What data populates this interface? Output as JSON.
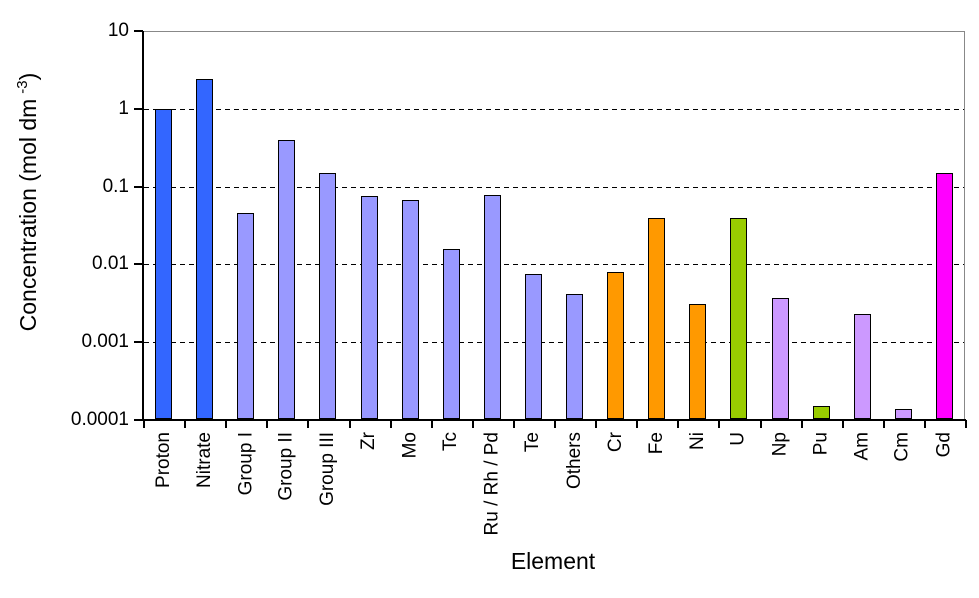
{
  "chart_data": {
    "type": "bar",
    "title": "",
    "xlabel": "Element",
    "ylabel": "Concentration (mol dm^-3)",
    "ylabel_parts": {
      "main": "Concentration (mol dm",
      "sup": "-3",
      "close": ")"
    },
    "y_scale": "log",
    "ylim": [
      0.0001,
      10
    ],
    "grid": "horizontal dashed lines at each decade",
    "legend_position": "none",
    "y_ticks": [
      {
        "label": "10",
        "value": 10
      },
      {
        "label": "1",
        "value": 1
      },
      {
        "label": "0.1",
        "value": 0.1
      },
      {
        "label": "0.01",
        "value": 0.01
      },
      {
        "label": "0.001",
        "value": 0.001
      },
      {
        "label": "0.0001",
        "value": 0.0001
      }
    ],
    "y_gridlines": [
      1,
      0.1,
      0.01,
      0.001
    ],
    "categories": [
      "Proton",
      "Nitrate",
      "Group I",
      "Group II",
      "Group III",
      "Zr",
      "Mo",
      "Tc",
      "Ru / Rh / Pd",
      "Te",
      "Others",
      "Cr",
      "Fe",
      "Ni",
      "U",
      "Np",
      "Pu",
      "Am",
      "Cm",
      "Gd"
    ],
    "values": [
      1.0,
      2.4,
      0.046,
      0.4,
      0.15,
      0.075,
      0.068,
      0.016,
      0.078,
      0.0075,
      0.0042,
      0.008,
      0.04,
      0.0031,
      0.04,
      0.0037,
      0.00015,
      0.0023,
      0.00014,
      0.15
    ],
    "bar_colors": [
      "#3366FF",
      "#3366FF",
      "#9999FF",
      "#9999FF",
      "#9999FF",
      "#9999FF",
      "#9999FF",
      "#9999FF",
      "#9999FF",
      "#9999FF",
      "#9999FF",
      "#FF9900",
      "#FF9900",
      "#FF9900",
      "#99CC00",
      "#CC99FF",
      "#99CC00",
      "#CC99FF",
      "#CC99FF",
      "#FF00FF"
    ]
  },
  "colors": {
    "proton_nitrate_blue": "#3366FF",
    "fission_product_periwinkle": "#9999FF",
    "corrosion_orange": "#FF9900",
    "green": "#99CC00",
    "actinide_purple": "#CC99FF",
    "gd_magenta": "#FF00FF",
    "plot_border_gray": "#888888",
    "axis_black": "#000000"
  }
}
